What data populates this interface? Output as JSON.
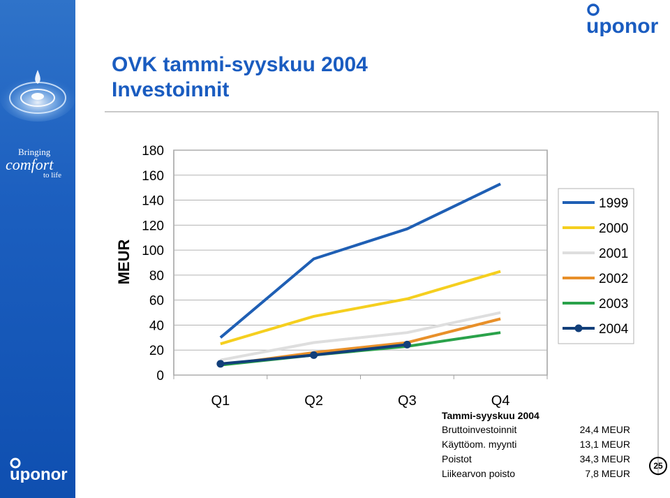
{
  "slide": {
    "title_line1": "OVK tammi-syyskuu 2004",
    "title_line2": "Investoinnit",
    "page_number": "25"
  },
  "brand": {
    "logo_text": "uponor",
    "tagline_1": "Bringing",
    "tagline_2": "comfort",
    "tagline_3": "to life",
    "primary_color": "#1a5cc0"
  },
  "chart_data": {
    "type": "line",
    "categories": [
      "Q1",
      "Q2",
      "Q3",
      "Q4"
    ],
    "ylabel": "MEUR",
    "ylim": [
      0,
      180
    ],
    "yticks": [
      0,
      20,
      40,
      60,
      80,
      100,
      120,
      140,
      160,
      180
    ],
    "grid": true,
    "legend_position": "right",
    "series": [
      {
        "name": "1999",
        "color": "#1f5fb4",
        "values": [
          30,
          93,
          117,
          153
        ]
      },
      {
        "name": "2000",
        "color": "#f5cf1f",
        "values": [
          25,
          47,
          61,
          83
        ]
      },
      {
        "name": "2001",
        "color": "#dedede",
        "values": [
          12,
          26,
          34,
          50
        ]
      },
      {
        "name": "2002",
        "color": "#e8902a",
        "values": [
          8,
          18,
          26,
          45
        ]
      },
      {
        "name": "2003",
        "color": "#2aa24a",
        "values": [
          8,
          16,
          23,
          34
        ]
      },
      {
        "name": "2004",
        "color": "#123f7a",
        "values": [
          9,
          16,
          24.4,
          null
        ],
        "markers": true
      }
    ]
  },
  "summary": {
    "title": "Tammi-syyskuu 2004",
    "rows": [
      {
        "label": "Bruttoinvestoinnit",
        "value": "24,4 MEUR"
      },
      {
        "label": "Käyttöom. myynti",
        "value": "13,1 MEUR"
      },
      {
        "label": "Poistot",
        "value": "34,3 MEUR"
      },
      {
        "label": "Liikearvon poisto",
        "value": "7,8 MEUR"
      }
    ]
  }
}
